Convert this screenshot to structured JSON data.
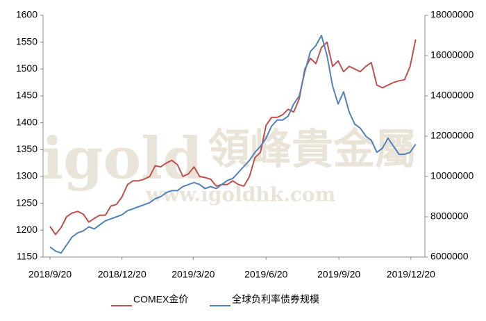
{
  "chart_data": {
    "type": "line",
    "watermark": [
      "igold",
      "領峰貴金屬",
      "www.igoldhk.com"
    ],
    "x": [
      "2018/9/20",
      "2018/9/27",
      "2018/10/4",
      "2018/10/11",
      "2018/10/18",
      "2018/10/25",
      "2018/11/1",
      "2018/11/8",
      "2018/11/15",
      "2018/11/22",
      "2018/11/29",
      "2018/12/6",
      "2018/12/13",
      "2018/12/20",
      "2018/12/27",
      "2019/1/3",
      "2019/1/10",
      "2019/1/17",
      "2019/1/24",
      "2019/1/31",
      "2019/2/7",
      "2019/2/14",
      "2019/2/21",
      "2019/2/28",
      "2019/3/7",
      "2019/3/14",
      "2019/3/21",
      "2019/3/28",
      "2019/4/4",
      "2019/4/11",
      "2019/4/18",
      "2019/4/25",
      "2019/5/2",
      "2019/5/9",
      "2019/5/16",
      "2019/5/23",
      "2019/5/30",
      "2019/6/6",
      "2019/6/13",
      "2019/6/20",
      "2019/6/27",
      "2019/7/4",
      "2019/7/11",
      "2019/7/18",
      "2019/7/25",
      "2019/8/1",
      "2019/8/8",
      "2019/8/15",
      "2019/8/22",
      "2019/8/29",
      "2019/9/5",
      "2019/9/12",
      "2019/9/19",
      "2019/9/26",
      "2019/10/3",
      "2019/10/10",
      "2019/10/17",
      "2019/10/24",
      "2019/10/31",
      "2019/11/7",
      "2019/11/14",
      "2019/11/21",
      "2019/11/28",
      "2019/12/5",
      "2019/12/12",
      "2019/12/19",
      "2019/12/26"
    ],
    "xticks": [
      "2018/9/20",
      "2018/12/20",
      "2019/3/20",
      "2019/6/20",
      "2019/9/20",
      "2019/12/20"
    ],
    "series": [
      {
        "name": "COMEX金价",
        "color": "#c0504d",
        "axis": "y",
        "values": [
          1207,
          1192,
          1205,
          1225,
          1232,
          1235,
          1230,
          1215,
          1222,
          1228,
          1228,
          1245,
          1248,
          1262,
          1285,
          1292,
          1292,
          1295,
          1300,
          1320,
          1318,
          1325,
          1330,
          1322,
          1300,
          1305,
          1318,
          1300,
          1298,
          1295,
          1282,
          1285,
          1285,
          1292,
          1285,
          1282,
          1300,
          1335,
          1345,
          1395,
          1410,
          1410,
          1415,
          1425,
          1420,
          1445,
          1500,
          1520,
          1510,
          1540,
          1550,
          1505,
          1515,
          1495,
          1505,
          1500,
          1495,
          1505,
          1512,
          1470,
          1465,
          1470,
          1475,
          1478,
          1480,
          1505,
          1555
        ]
      },
      {
        "name": "全球负利率债券规模",
        "color": "#4f81bd",
        "axis": "y2",
        "values": [
          6500000,
          6300000,
          6200000,
          6600000,
          7000000,
          7200000,
          7300000,
          7500000,
          7400000,
          7600000,
          7800000,
          7900000,
          8000000,
          8100000,
          8300000,
          8400000,
          8500000,
          8600000,
          8700000,
          8900000,
          9000000,
          9200000,
          9300000,
          9300000,
          9500000,
          9600000,
          9700000,
          9600000,
          9400000,
          9500000,
          9400000,
          9600000,
          9800000,
          9900000,
          10200000,
          10500000,
          10800000,
          11200000,
          11500000,
          11900000,
          12500000,
          12800000,
          12800000,
          13000000,
          13600000,
          14000000,
          15200000,
          16200000,
          16500000,
          17000000,
          16000000,
          14500000,
          13600000,
          14200000,
          13200000,
          12600000,
          12400000,
          12000000,
          11800000,
          11200000,
          11400000,
          11900000,
          11500000,
          11100000,
          11100000,
          11200000,
          11600000
        ]
      }
    ],
    "ylim": [
      1150,
      1600
    ],
    "yticks": [
      1150,
      1200,
      1250,
      1300,
      1350,
      1400,
      1450,
      1500,
      1550,
      1600
    ],
    "y2lim": [
      6000000,
      18000000
    ],
    "y2ticks": [
      6000000,
      8000000,
      10000000,
      12000000,
      14000000,
      16000000,
      18000000
    ],
    "legend": "bottom"
  }
}
